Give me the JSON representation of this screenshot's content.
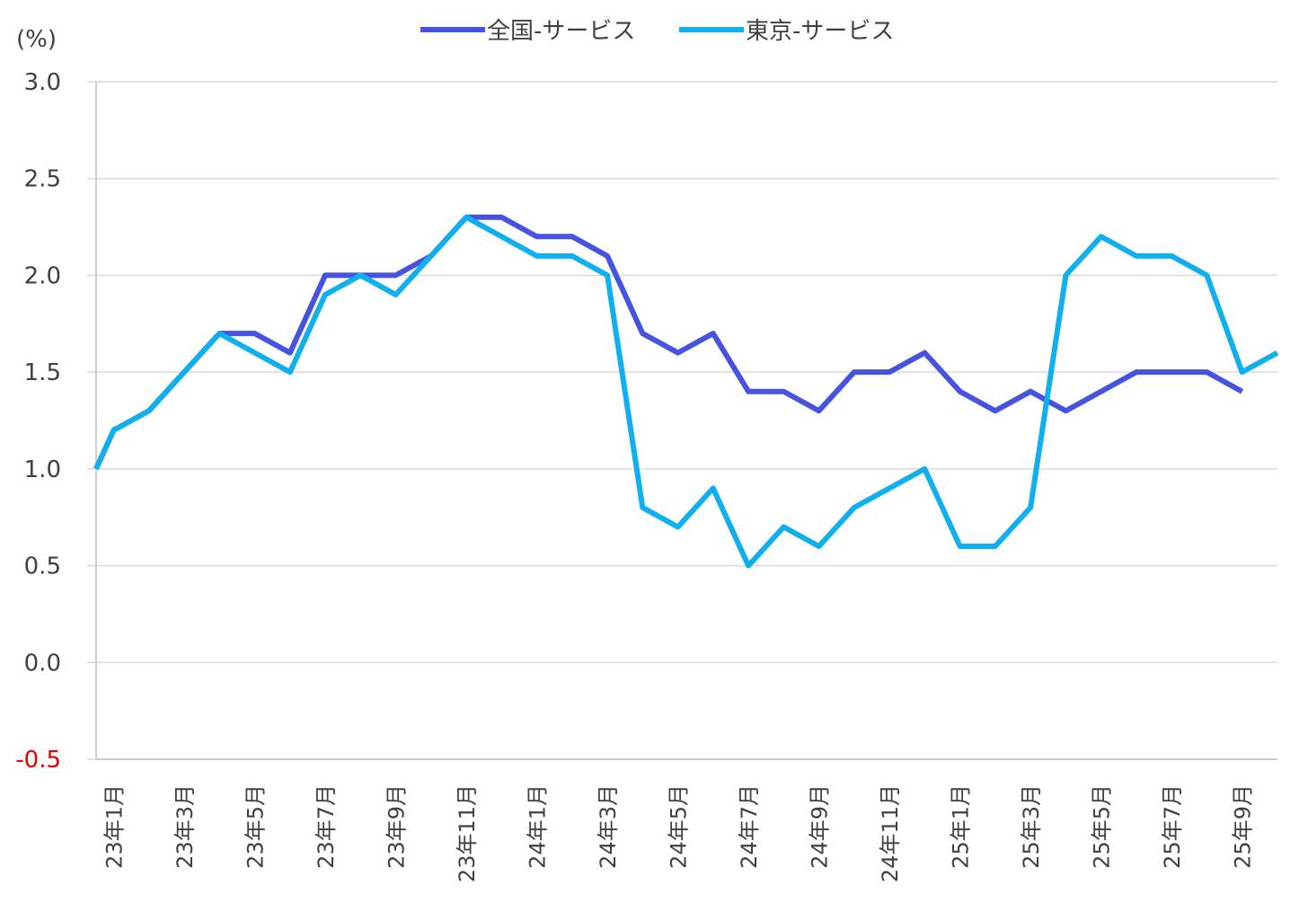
{
  "chart_data": {
    "type": "line",
    "y_unit": "(%)",
    "ylim": [
      -0.5,
      3.0
    ],
    "ytick_step": 0.5,
    "ytick_labels": [
      "3.0",
      "2.5",
      "2.0",
      "1.5",
      "1.0",
      "0.5",
      "0.0",
      "-0.5"
    ],
    "grid": "horizontal",
    "legend_position": "top-center",
    "x": [
      "23年1月",
      "23年2月",
      "23年3月",
      "23年4月",
      "23年5月",
      "23年6月",
      "23年7月",
      "23年8月",
      "23年9月",
      "23年10月",
      "23年11月",
      "23年12月",
      "24年1月",
      "24年2月",
      "24年3月",
      "24年4月",
      "24年5月",
      "24年6月",
      "24年7月",
      "24年8月",
      "24年9月",
      "24年10月",
      "24年11月",
      "24年12月",
      "25年1月",
      "25年2月",
      "25年3月",
      "25年4月",
      "25年5月",
      "25年6月",
      "25年7月",
      "25年8月",
      "25年9月",
      "25年10月"
    ],
    "xtick_labels": [
      "23年1月",
      "23年3月",
      "23年5月",
      "23年7月",
      "23年9月",
      "23年11月",
      "24年1月",
      "24年3月",
      "24年5月",
      "24年7月",
      "24年9月",
      "24年11月",
      "25年1月",
      "25年3月",
      "25年5月",
      "25年7月",
      "25年9月"
    ],
    "series": [
      {
        "name": "全国-サービス",
        "color": "#4652e0",
        "values": [
          1.2,
          1.3,
          1.5,
          1.7,
          1.7,
          1.6,
          2.0,
          2.0,
          2.0,
          2.1,
          2.3,
          2.3,
          2.2,
          2.2,
          2.1,
          1.7,
          1.6,
          1.7,
          1.4,
          1.4,
          1.3,
          1.5,
          1.5,
          1.6,
          1.4,
          1.3,
          1.4,
          1.3,
          1.4,
          1.5,
          1.5,
          1.5,
          1.4,
          null
        ]
      },
      {
        "name": "東京-サービス",
        "color": "#10b0ee",
        "values": [
          1.2,
          1.3,
          1.5,
          1.7,
          1.6,
          1.5,
          1.9,
          2.0,
          1.9,
          2.1,
          2.3,
          2.2,
          2.1,
          2.1,
          2.0,
          0.8,
          0.7,
          0.9,
          0.5,
          0.7,
          0.6,
          0.8,
          0.9,
          1.0,
          0.6,
          0.6,
          0.8,
          2.0,
          2.2,
          2.1,
          2.1,
          2.0,
          1.5,
          1.6
        ]
      }
    ],
    "series2_start_value": 1.0
  }
}
